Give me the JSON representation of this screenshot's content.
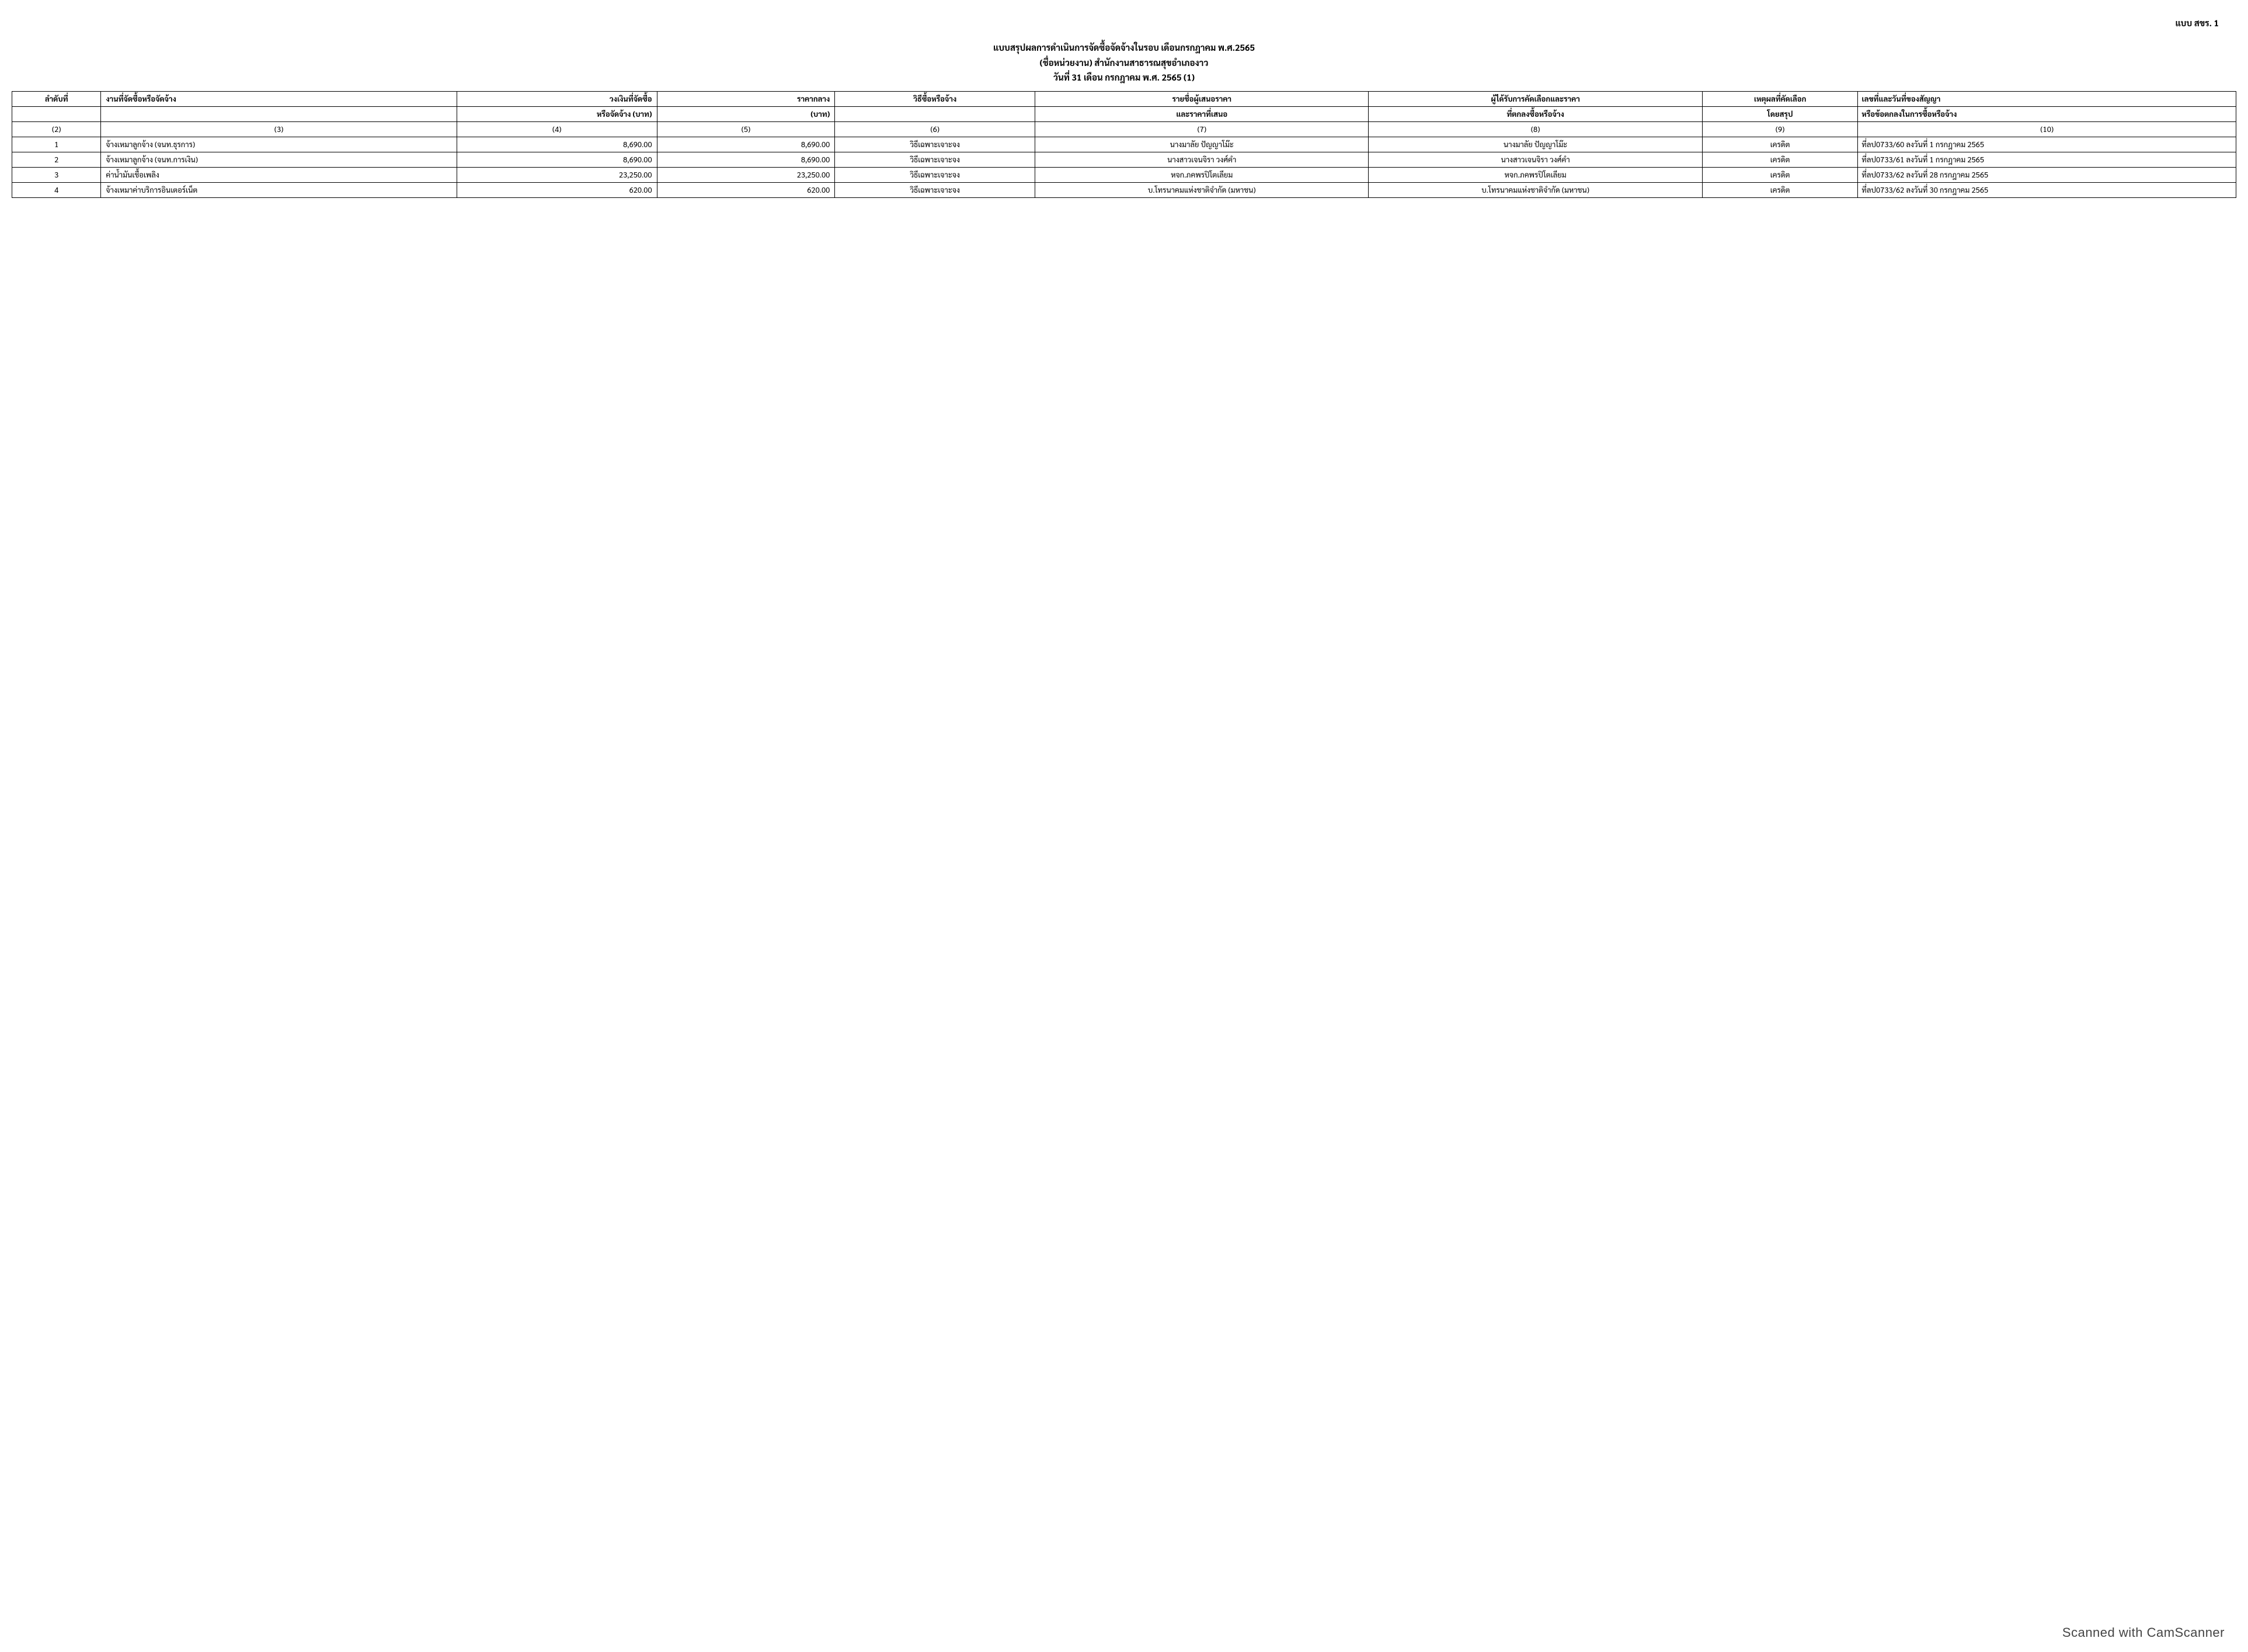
{
  "form_label": "แบบ สขร. 1",
  "title": {
    "line1": "แบบสรุปผลการดำเนินการจัดซื้อจัดจ้างในรอบ เดือนกรกฎาคม  พ.ศ.2565",
    "line2": "(ชื่อหน่วยงาน) สำนักงานสาธารณสุขอำเภองาว",
    "line3": "วันที่ 31 เดือน  กรกฎาคม พ.ศ. 2565 (1)"
  },
  "headers": {
    "c1": "ลำดับที่",
    "c2": "งานที่จัดซื้อหรือจัดจ้าง",
    "c3a": "วงเงินที่จัดซื้อ",
    "c3b": "หรือจัดจ้าง (บาท)",
    "c4a": "ราคากลาง",
    "c4b": "(บาท)",
    "c5": "วิธีซื้อหรือจ้าง",
    "c6a": "รายชื่อผู้เสนอราคา",
    "c6b": "และราคาที่เสนอ",
    "c7a": "ผู้ได้รับการคัดเลือกและราคา",
    "c7b": "ที่ตกลงซื้อหรือจ้าง",
    "c8a": "เหตุผลที่คัดเลือก",
    "c8b": "โดยสรุป",
    "c9a": "เลขที่และวันที่ของสัญญา",
    "c9b": "หรือข้อตกลงในการซื้อหรือจ้าง"
  },
  "num_labels": {
    "n1": "(2)",
    "n2": "(3)",
    "n3": "(4)",
    "n4": "(5)",
    "n5": "(6)",
    "n6": "(7)",
    "n7": "(8)",
    "n8": "(9)",
    "n9": "(10)"
  },
  "rows": [
    {
      "no": "1",
      "work": "จ้างเหมาลูกจ้าง (จนท.ธุรการ)",
      "budget": "8,690.00",
      "price": "8,690.00",
      "method": "วิธีเฉพาะเจาะจง",
      "bidder": "นางมาลัย ปัญญาโม๊ะ",
      "winner": "นางมาลัย ปัญญาโม๊ะ",
      "reason": "เครดิต",
      "contract": "ที่ลป0733/60 ลงวันที่ 1 กรกฎาคม  2565"
    },
    {
      "no": "2",
      "work": "จ้างเหมาลูกจ้าง (จนท.การเงิน)",
      "budget": "8,690.00",
      "price": "8,690.00",
      "method": "วิธีเฉพาะเจาะจง",
      "bidder": "นางสาวเจนจิรา วงศ์คำ",
      "winner": "นางสาวเจนจิรา วงศ์คำ",
      "reason": "เครดิต",
      "contract": "ที่ลป0733/61 ลงวันที่ 1 กรกฎาคม 2565"
    },
    {
      "no": "3",
      "work": "ค่าน้ำมันเชื้อเพลิง",
      "budget": "23,250.00",
      "price": "23,250.00",
      "method": "วิธีเฉพาะเจาะจง",
      "bidder": "หจก.ภคพรปิโตเลียม",
      "winner": "หจก.ภคพรปิโตเลียม",
      "reason": "เครดิต",
      "contract": "ที่ลป0733/62 ลงวันที่ 28  กรกฎาคม  2565"
    },
    {
      "no": "4",
      "work": "จ้างเหมาค่าบริการอินเตอร์เน็ต",
      "budget": "620.00",
      "price": "620.00",
      "method": "วิธีเฉพาะเจาะจง",
      "bidder": "บ.โทรนาคมแห่งชาติจำกัด (มหาชน)",
      "winner": "บ.โทรนาคมแห่งชาติจำกัด (มหาชน)",
      "reason": "เครดิต",
      "contract": "ที่ลป0733/62 ลงวันที่ 30 กรกฎาคม  2565"
    }
  ],
  "watermark": "Scanned with CamScanner"
}
